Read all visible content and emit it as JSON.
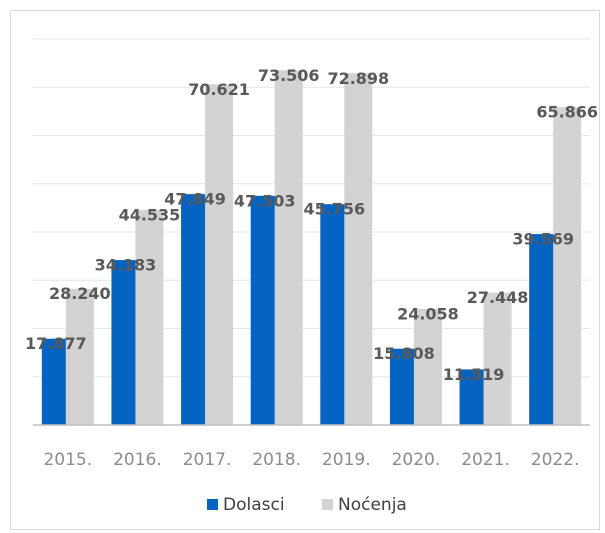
{
  "chart_data": {
    "type": "bar",
    "categories": [
      "2015.",
      "2016.",
      "2017.",
      "2018.",
      "2019.",
      "2020.",
      "2021.",
      "2022."
    ],
    "series": [
      {
        "name": "Dolasci",
        "color": "#0563c1",
        "values": [
          17877,
          34183,
          47849,
          47503,
          45756,
          15808,
          11519,
          39569
        ],
        "value_labels": [
          "17.877",
          "34.183",
          "47.849",
          "47.503",
          "45.756",
          "15.808",
          "11.519",
          "39.569"
        ]
      },
      {
        "name": "Noćenja",
        "color": "#d3d3d3",
        "values": [
          28240,
          44535,
          70621,
          73506,
          72898,
          24058,
          27448,
          65866
        ],
        "value_labels": [
          "28.240",
          "44.535",
          "70.621",
          "73.506",
          "72.898",
          "24.058",
          "27.448",
          "65.866"
        ]
      }
    ],
    "ylim": [
      0,
      80000
    ],
    "yticks": [
      0,
      10000,
      20000,
      30000,
      40000,
      50000,
      60000,
      70000,
      80000
    ],
    "grid": true
  }
}
